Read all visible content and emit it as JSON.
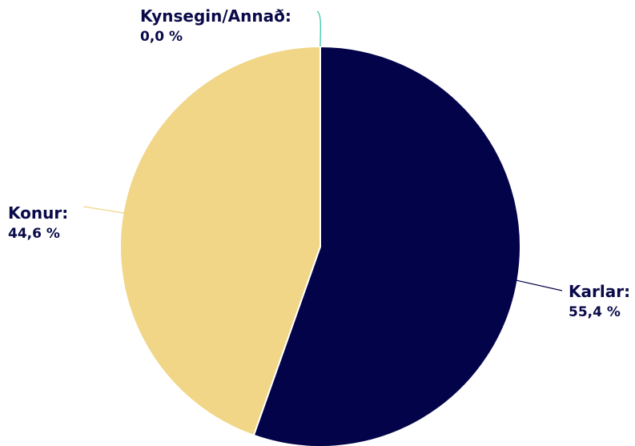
{
  "chart_data": {
    "type": "pie",
    "title": "",
    "categories": [
      "Karlar:",
      "Konur:",
      "Kynsegin/Annað:"
    ],
    "values": [
      55.4,
      44.6,
      0.0
    ],
    "value_labels": [
      "55,4 %",
      "44,6 %",
      "0,0 %"
    ],
    "colors": [
      "#03034a",
      "#f0d686",
      "#2ec4a0"
    ],
    "slice_border_color": "#ffffff",
    "start_angle": "12 o'clock",
    "direction": "clockwise",
    "legend": "none",
    "data_labels": "outside with leader lines"
  }
}
